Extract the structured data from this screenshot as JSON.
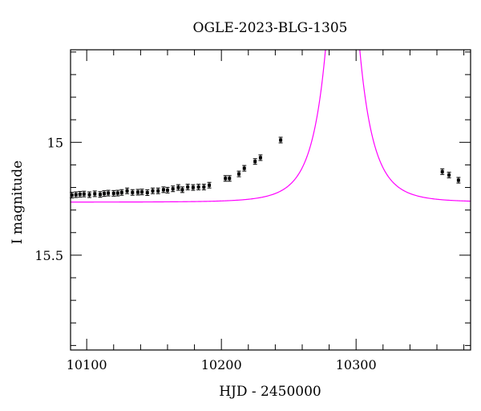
{
  "chart_data": {
    "type": "scatter",
    "title": "OGLE-2023-BLG-1305",
    "xlabel": "HJD - 2450000",
    "ylabel": "I magnitude",
    "xlim": [
      10088,
      10385
    ],
    "ylim": [
      15.92,
      14.59
    ],
    "y_inverted": true,
    "x_ticks": [
      10100,
      10200,
      10300
    ],
    "y_ticks": [
      15,
      15.5
    ],
    "grid": false,
    "colors": {
      "model": "#ff00ff",
      "data": "#000000"
    },
    "model": {
      "t0": 10290,
      "tE": 21,
      "u0": 0.05,
      "base_mag": 15.265
    },
    "series": [
      {
        "values": [
          [
            10089,
            15.234
          ],
          [
            10092,
            15.232
          ],
          [
            10095,
            15.23
          ],
          [
            10098,
            15.229
          ],
          [
            10102,
            15.232
          ],
          [
            10106,
            15.228
          ],
          [
            10110,
            15.231
          ],
          [
            10113,
            15.227
          ],
          [
            10116,
            15.225
          ],
          [
            10120,
            15.226
          ],
          [
            10123,
            15.225
          ],
          [
            10126,
            15.222
          ],
          [
            10130,
            15.215
          ],
          [
            10134,
            15.222
          ],
          [
            10138,
            15.221
          ],
          [
            10141,
            15.22
          ],
          [
            10145,
            15.223
          ],
          [
            10149,
            15.215
          ],
          [
            10153,
            15.215
          ],
          [
            10157,
            15.21
          ],
          [
            10160,
            15.212
          ],
          [
            10164,
            15.206
          ],
          [
            10168,
            15.2
          ],
          [
            10171,
            15.21
          ],
          [
            10175,
            15.198
          ],
          [
            10179,
            15.2
          ],
          [
            10183,
            15.198
          ],
          [
            10187,
            15.198
          ],
          [
            10191,
            15.19
          ],
          [
            10203,
            15.16
          ],
          [
            10206,
            15.16
          ],
          [
            10213,
            15.14
          ],
          [
            10217,
            15.115
          ],
          [
            10225,
            15.085
          ],
          [
            10229,
            15.068
          ],
          [
            10244,
            14.99
          ],
          [
            10364,
            15.13
          ],
          [
            10369,
            15.145
          ],
          [
            10376,
            15.168
          ]
        ]
      }
    ]
  }
}
